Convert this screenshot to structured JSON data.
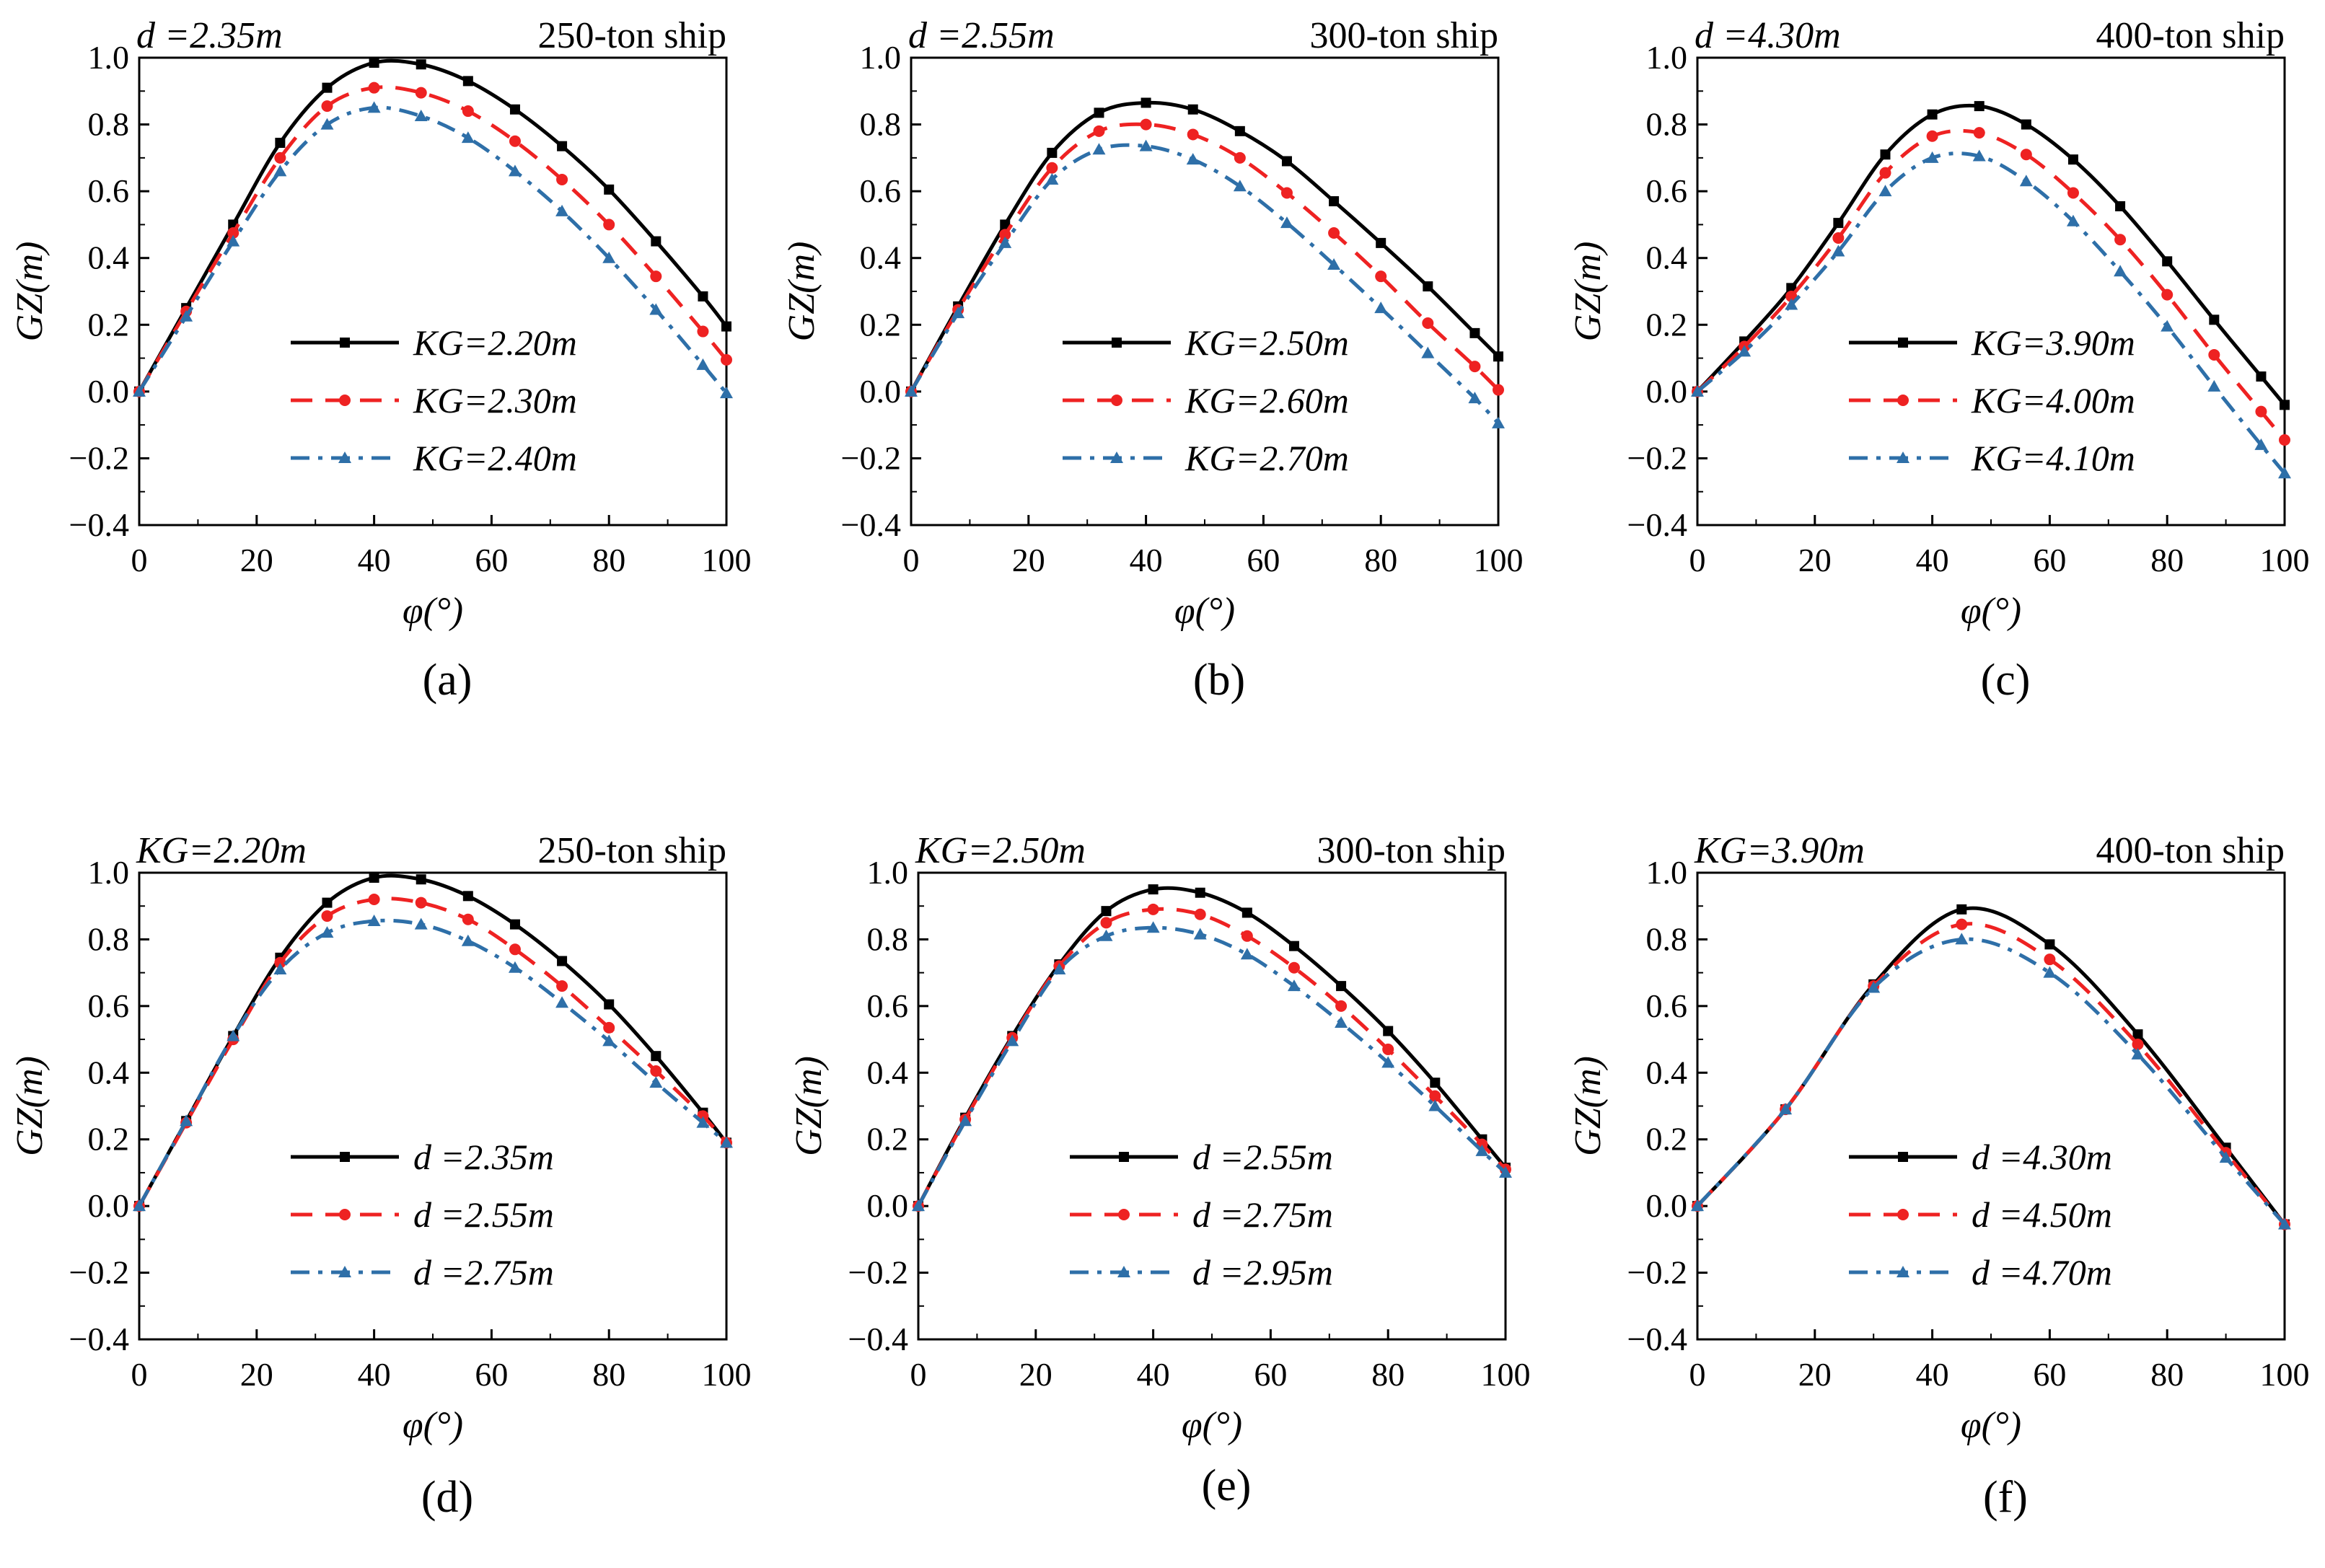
{
  "chart_data": [
    {
      "type": "line",
      "panel": "(a)",
      "left_note": "d =2.35m",
      "right_note": "250-ton ship",
      "xlabel": "φ(°)",
      "ylabel": "GZ(m)",
      "xlim": [
        0,
        100
      ],
      "ylim": [
        -0.4,
        1.0
      ],
      "xticks": [
        "0",
        "20",
        "40",
        "60",
        "80",
        "100"
      ],
      "yticks": [
        "−0.4",
        "−0.2",
        "0.0",
        "0.2",
        "0.4",
        "0.6",
        "0.8",
        "1.0"
      ],
      "x": [
        0,
        8,
        16,
        24,
        32,
        40,
        48,
        56,
        64,
        72,
        80,
        88,
        96,
        100
      ],
      "series": [
        {
          "name": "KG=2.20m",
          "values": [
            0,
            0.25,
            0.5,
            0.745,
            0.91,
            0.985,
            0.98,
            0.93,
            0.845,
            0.735,
            0.605,
            0.45,
            0.285,
            0.195
          ]
        },
        {
          "name": "KG=2.30m",
          "values": [
            0,
            0.24,
            0.475,
            0.7,
            0.855,
            0.91,
            0.895,
            0.84,
            0.75,
            0.635,
            0.5,
            0.345,
            0.18,
            0.095
          ]
        },
        {
          "name": "KG=2.40m",
          "values": [
            0,
            0.225,
            0.45,
            0.66,
            0.8,
            0.85,
            0.825,
            0.76,
            0.66,
            0.54,
            0.4,
            0.245,
            0.08,
            -0.005
          ]
        }
      ]
    },
    {
      "type": "line",
      "panel": "(b)",
      "left_note": "d =2.55m",
      "right_note": "300-ton ship",
      "xlabel": "φ(°)",
      "ylabel": "GZ(m)",
      "xlim": [
        0,
        100
      ],
      "ylim": [
        -0.4,
        1.0
      ],
      "xticks": [
        "0",
        "20",
        "40",
        "60",
        "80",
        "100"
      ],
      "yticks": [
        "−0.4",
        "−0.2",
        "0.0",
        "0.2",
        "0.4",
        "0.6",
        "0.8",
        "1.0"
      ],
      "x": [
        0,
        8,
        16,
        24,
        32,
        40,
        48,
        56,
        64,
        72,
        80,
        88,
        96,
        100
      ],
      "series": [
        {
          "name": "KG=2.50m",
          "values": [
            0,
            0.255,
            0.5,
            0.715,
            0.835,
            0.865,
            0.845,
            0.78,
            0.69,
            0.57,
            0.445,
            0.315,
            0.175,
            0.105
          ]
        },
        {
          "name": "KG=2.60m",
          "values": [
            0,
            0.245,
            0.47,
            0.67,
            0.78,
            0.8,
            0.77,
            0.7,
            0.595,
            0.475,
            0.345,
            0.205,
            0.075,
            0.005
          ]
        },
        {
          "name": "KG=2.70m",
          "values": [
            0,
            0.235,
            0.445,
            0.635,
            0.725,
            0.735,
            0.695,
            0.615,
            0.505,
            0.38,
            0.25,
            0.115,
            -0.02,
            -0.095
          ]
        }
      ]
    },
    {
      "type": "line",
      "panel": "(c)",
      "left_note": "d =4.30m",
      "right_note": "400-ton ship",
      "xlabel": "φ(°)",
      "ylabel": "GZ(m)",
      "xlim": [
        0,
        100
      ],
      "ylim": [
        -0.4,
        1.0
      ],
      "xticks": [
        "0",
        "20",
        "40",
        "60",
        "80",
        "100"
      ],
      "yticks": [
        "−0.4",
        "−0.2",
        "0.0",
        "0.2",
        "0.4",
        "0.6",
        "0.8",
        "1.0"
      ],
      "x": [
        0,
        8,
        16,
        24,
        32,
        40,
        48,
        56,
        64,
        72,
        80,
        88,
        96,
        100
      ],
      "series": [
        {
          "name": "KG=3.90m",
          "values": [
            0,
            0.15,
            0.31,
            0.505,
            0.71,
            0.83,
            0.855,
            0.8,
            0.695,
            0.555,
            0.39,
            0.215,
            0.045,
            -0.04
          ]
        },
        {
          "name": "KG=4.00m",
          "values": [
            0,
            0.135,
            0.285,
            0.46,
            0.655,
            0.765,
            0.775,
            0.71,
            0.595,
            0.455,
            0.29,
            0.11,
            -0.06,
            -0.145
          ]
        },
        {
          "name": "KG=4.10m",
          "values": [
            0,
            0.12,
            0.26,
            0.42,
            0.6,
            0.7,
            0.705,
            0.63,
            0.51,
            0.36,
            0.195,
            0.015,
            -0.16,
            -0.245
          ]
        }
      ]
    },
    {
      "type": "line",
      "panel": "(d)",
      "left_note": "KG=2.20m",
      "right_note": "250-ton ship",
      "xlabel": "φ(°)",
      "ylabel": "GZ(m)",
      "xlim": [
        0,
        100
      ],
      "ylim": [
        -0.4,
        1.0
      ],
      "xticks": [
        "0",
        "20",
        "40",
        "60",
        "80",
        "100"
      ],
      "yticks": [
        "−0.4",
        "−0.2",
        "0.0",
        "0.2",
        "0.4",
        "0.6",
        "0.8",
        "1.0"
      ],
      "x": [
        0,
        8,
        16,
        24,
        32,
        40,
        48,
        56,
        64,
        72,
        80,
        88,
        96,
        100
      ],
      "series": [
        {
          "name": "d =2.35m",
          "values": [
            0,
            0.255,
            0.51,
            0.745,
            0.91,
            0.985,
            0.98,
            0.93,
            0.845,
            0.735,
            0.605,
            0.45,
            0.28,
            0.19
          ]
        },
        {
          "name": "d =2.55m",
          "values": [
            0,
            0.25,
            0.5,
            0.73,
            0.87,
            0.92,
            0.91,
            0.86,
            0.77,
            0.66,
            0.535,
            0.405,
            0.27,
            0.19
          ]
        },
        {
          "name": "d =2.75m",
          "values": [
            0,
            0.255,
            0.51,
            0.71,
            0.82,
            0.855,
            0.845,
            0.795,
            0.715,
            0.61,
            0.495,
            0.37,
            0.25,
            0.19
          ]
        }
      ]
    },
    {
      "type": "line",
      "panel": "(e)",
      "left_note": "KG=2.50m",
      "right_note": "300-ton ship",
      "xlabel": "φ(°)",
      "ylabel": "GZ(m)",
      "xlim": [
        0,
        100
      ],
      "ylim": [
        -0.4,
        1.0
      ],
      "xticks": [
        "0",
        "20",
        "40",
        "60",
        "80",
        "100"
      ],
      "yticks": [
        "−0.4",
        "−0.2",
        "0.0",
        "0.2",
        "0.4",
        "0.6",
        "0.8",
        "1.0"
      ],
      "x": [
        0,
        8,
        16,
        24,
        32,
        40,
        48,
        56,
        64,
        72,
        80,
        88,
        96,
        100
      ],
      "series": [
        {
          "name": "d =2.55m",
          "values": [
            0,
            0.265,
            0.51,
            0.725,
            0.885,
            0.95,
            0.94,
            0.88,
            0.78,
            0.66,
            0.525,
            0.37,
            0.2,
            0.115
          ]
        },
        {
          "name": "d =2.75m",
          "values": [
            0,
            0.26,
            0.505,
            0.72,
            0.85,
            0.89,
            0.875,
            0.81,
            0.715,
            0.6,
            0.47,
            0.33,
            0.185,
            0.11
          ]
        },
        {
          "name": "d =2.95m",
          "values": [
            0,
            0.255,
            0.495,
            0.71,
            0.81,
            0.835,
            0.815,
            0.755,
            0.66,
            0.55,
            0.43,
            0.3,
            0.165,
            0.1
          ]
        }
      ]
    },
    {
      "type": "line",
      "panel": "(f)",
      "left_note": "KG=3.90m",
      "right_note": "400-ton ship",
      "xlabel": "φ(°)",
      "ylabel": "GZ(m)",
      "xlim": [
        0,
        100
      ],
      "ylim": [
        -0.4,
        1.0
      ],
      "xticks": [
        "0",
        "20",
        "40",
        "60",
        "80",
        "100"
      ],
      "yticks": [
        "−0.4",
        "−0.2",
        "0.0",
        "0.2",
        "0.4",
        "0.6",
        "0.8",
        "1.0"
      ],
      "x": [
        0,
        15,
        30,
        45,
        60,
        75,
        90,
        100
      ],
      "series": [
        {
          "name": "d =4.30m",
          "values": [
            0,
            0.29,
            0.665,
            0.89,
            0.785,
            0.515,
            0.175,
            -0.055
          ]
        },
        {
          "name": "d =4.50m",
          "values": [
            0,
            0.29,
            0.66,
            0.845,
            0.74,
            0.485,
            0.16,
            -0.055
          ]
        },
        {
          "name": "d =4.70m",
          "values": [
            0,
            0.29,
            0.655,
            0.8,
            0.7,
            0.455,
            0.145,
            -0.055
          ]
        }
      ]
    }
  ],
  "style": {
    "series_colors": [
      "#000000",
      "#ee2222",
      "#2e6fa8"
    ],
    "series_dash": [
      "",
      "30 18",
      "26 12 6 12"
    ],
    "series_markers": [
      "square",
      "circle",
      "triangle"
    ]
  }
}
